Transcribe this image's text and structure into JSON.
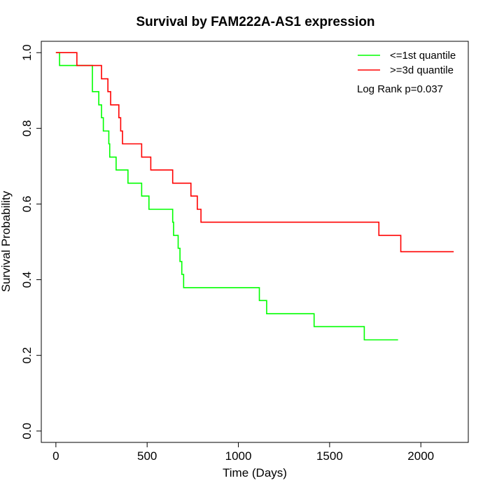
{
  "chart_data": {
    "type": "line",
    "title": "Survival by FAM222A-AS1 expression",
    "xlabel": "Time (Days)",
    "ylabel": "Survival Probability",
    "xlim": [
      -80,
      2260
    ],
    "ylim": [
      -0.03,
      1.03
    ],
    "xticks": [
      0,
      500,
      1000,
      1500,
      2000
    ],
    "xtick_labels": [
      "0",
      "500",
      "1000",
      "1500",
      "2000"
    ],
    "yticks": [
      0.0,
      0.2,
      0.4,
      0.6,
      0.8,
      1.0
    ],
    "ytick_labels": [
      "0.0",
      "0.2",
      "0.4",
      "0.6",
      "0.8",
      "1.0"
    ],
    "grid": false,
    "legend_position": "top-right",
    "annotation": "Log Rank p=0.037",
    "series": [
      {
        "name": "<=1st quantile",
        "color": "#00ff00",
        "step_x": [
          0,
          20,
          200,
          235,
          250,
          260,
          290,
          295,
          310,
          330,
          395,
          470,
          510,
          640,
          645,
          650,
          670,
          680,
          690,
          700,
          1115,
          1155,
          1415,
          1690,
          1875
        ],
        "step_y": [
          1.0,
          0.966,
          0.897,
          0.862,
          0.828,
          0.793,
          0.759,
          0.724,
          0.724,
          0.69,
          0.655,
          0.621,
          0.586,
          0.552,
          0.517,
          0.517,
          0.483,
          0.448,
          0.414,
          0.379,
          0.345,
          0.31,
          0.276,
          0.241,
          0.241
        ]
      },
      {
        "name": ">=3d quantile",
        "color": "#ff0000",
        "step_x": [
          0,
          115,
          250,
          265,
          285,
          300,
          345,
          355,
          365,
          470,
          520,
          640,
          740,
          775,
          795,
          1770,
          1890,
          2180
        ],
        "step_y": [
          1.0,
          0.966,
          0.931,
          0.931,
          0.897,
          0.862,
          0.828,
          0.793,
          0.759,
          0.724,
          0.69,
          0.655,
          0.621,
          0.586,
          0.552,
          0.517,
          0.474,
          0.474
        ]
      }
    ]
  }
}
